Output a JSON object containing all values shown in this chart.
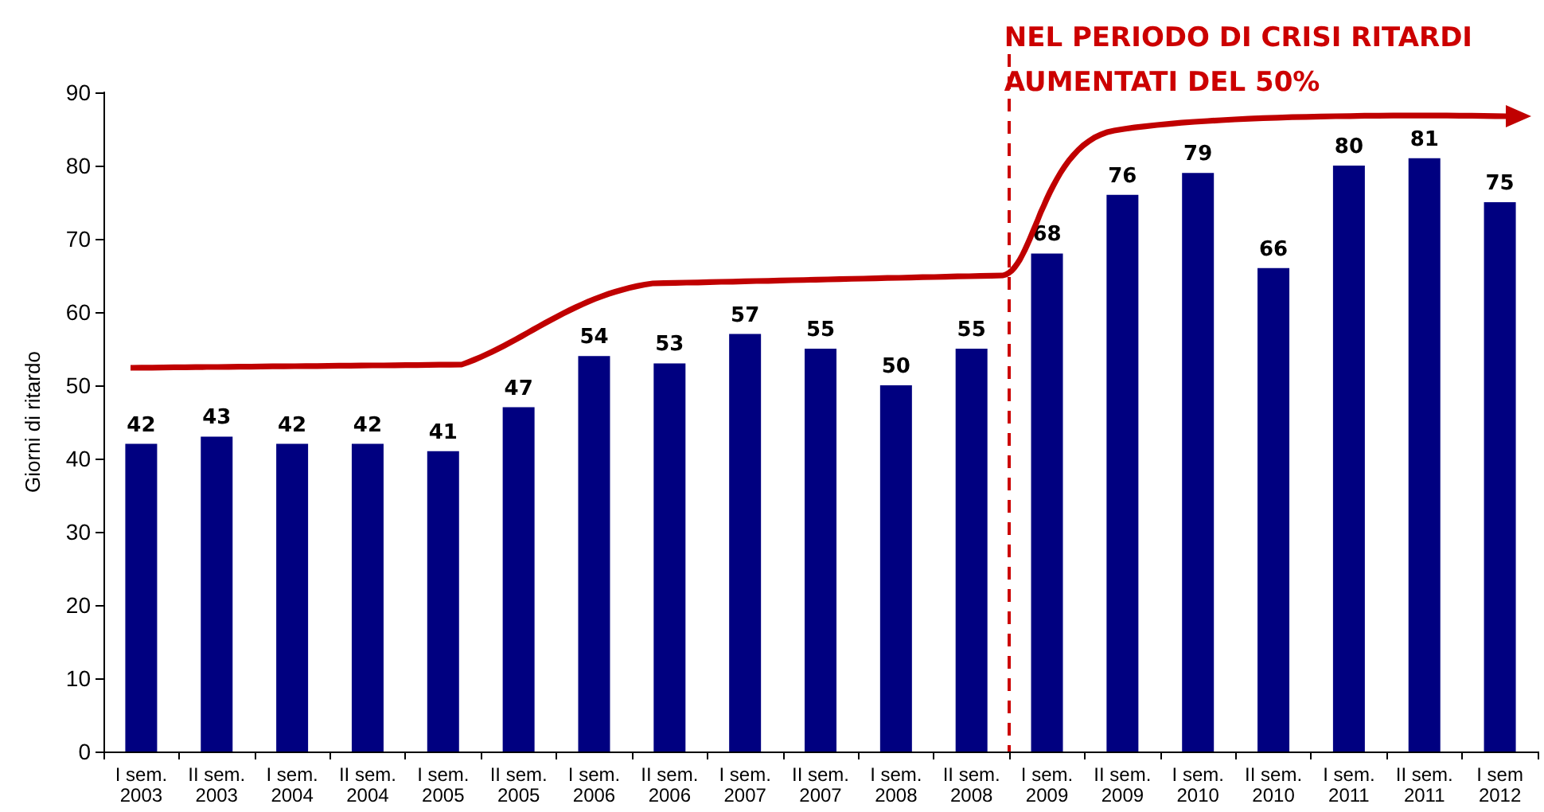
{
  "chart_data": {
    "type": "bar",
    "ylabel": "Giorni di ritardo",
    "categories": [
      "I sem.\n2003",
      "II sem.\n2003",
      "I sem.\n2004",
      "II sem.\n2004",
      "I sem.\n2005",
      "II sem.\n2005",
      "I sem.\n2006",
      "II sem.\n2006",
      "I sem.\n2007",
      "II sem.\n2007",
      "I sem.\n2008",
      "II sem.\n2008",
      "I sem.\n2009",
      "II sem.\n2009",
      "I sem.\n2010",
      "II sem.\n2010",
      "I sem.\n2011",
      "II sem.\n2011",
      "I sem\n2012"
    ],
    "values": [
      42,
      43,
      42,
      42,
      41,
      47,
      54,
      53,
      57,
      55,
      50,
      55,
      68,
      76,
      79,
      66,
      80,
      81,
      75
    ],
    "color": "#000080",
    "data_labels": true,
    "ylim": [
      0,
      90
    ],
    "yticks": [
      0,
      10,
      20,
      30,
      40,
      50,
      60,
      70,
      80,
      90
    ],
    "grid": false,
    "annotations": [
      "NEL PERIODO DI CRISI RITARDI\nAUMENTATI DEL 50%"
    ]
  }
}
